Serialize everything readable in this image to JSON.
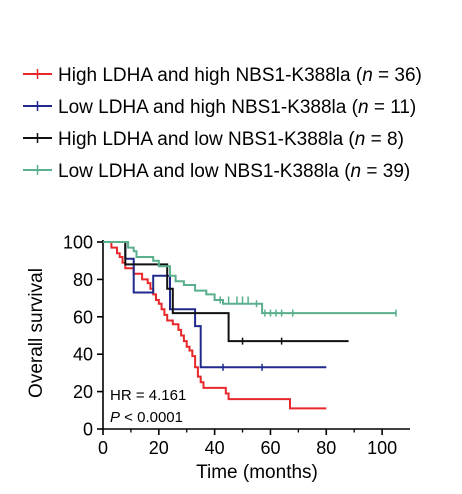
{
  "chart_data": {
    "type": "line",
    "step": true,
    "xlabel": "Time (months)",
    "ylabel": "Overall survival",
    "xlim": [
      0,
      110
    ],
    "ylim": [
      0,
      100
    ],
    "xticks": [
      "0",
      "20",
      "40",
      "60",
      "80",
      "100"
    ],
    "yticks": [
      "0",
      "20",
      "40",
      "60",
      "80",
      "100"
    ],
    "legend_position": "top",
    "annotations": {
      "hr": "HR = 4.161",
      "p_italic": "P",
      "p_rest": " < 0.0001"
    },
    "series": [
      {
        "name_main": "High LDHA and high NBS1-K388la (",
        "n_italic": "n",
        "name_tail": " = 36)",
        "color": "#e8272a",
        "points": [
          [
            0,
            100
          ],
          [
            3,
            97
          ],
          [
            5,
            94
          ],
          [
            6,
            92
          ],
          [
            7,
            89
          ],
          [
            8,
            86
          ],
          [
            11,
            83
          ],
          [
            14,
            80
          ],
          [
            16,
            78
          ],
          [
            17,
            75
          ],
          [
            18,
            72
          ],
          [
            19,
            69
          ],
          [
            20,
            67
          ],
          [
            21,
            64
          ],
          [
            22,
            61
          ],
          [
            23,
            58
          ],
          [
            25,
            56
          ],
          [
            27,
            53
          ],
          [
            28,
            50
          ],
          [
            29,
            47
          ],
          [
            30,
            44
          ],
          [
            31,
            42
          ],
          [
            32,
            39
          ],
          [
            33,
            33
          ],
          [
            34,
            28
          ],
          [
            35,
            25
          ],
          [
            36,
            22
          ],
          [
            44,
            19
          ],
          [
            45,
            16
          ],
          [
            55,
            16
          ],
          [
            67,
            11
          ],
          [
            80,
            11
          ]
        ],
        "censors": []
      },
      {
        "name_main": "Low LDHA and high NBS1-K388la (",
        "n_italic": "n",
        "name_tail": " = 11)",
        "color": "#1f2a8c",
        "points": [
          [
            0,
            100
          ],
          [
            8,
            91
          ],
          [
            11,
            73
          ],
          [
            16,
            73
          ],
          [
            18,
            82
          ],
          [
            22,
            82
          ],
          [
            24,
            64
          ],
          [
            31,
            64
          ],
          [
            33,
            55
          ],
          [
            35,
            33
          ],
          [
            80,
            33
          ]
        ],
        "censors": [
          [
            43,
            33
          ],
          [
            57,
            33
          ]
        ]
      },
      {
        "name_main": "High LDHA and low NBS1-K388la (",
        "n_italic": "n",
        "name_tail": " = 8)",
        "color": "#111111",
        "points": [
          [
            0,
            100
          ],
          [
            8,
            88
          ],
          [
            21,
            88
          ],
          [
            23,
            75
          ],
          [
            25,
            62
          ],
          [
            45,
            62
          ],
          [
            45,
            47
          ],
          [
            88,
            47
          ]
        ],
        "censors": [
          [
            50,
            47
          ],
          [
            64,
            47
          ]
        ]
      },
      {
        "name_main": "Low LDHA and low NBS1-K388la (",
        "n_italic": "n",
        "name_tail": " = 39)",
        "color": "#5aaf8c",
        "points": [
          [
            0,
            100
          ],
          [
            9,
            97
          ],
          [
            11,
            95
          ],
          [
            12,
            92
          ],
          [
            18,
            90
          ],
          [
            20,
            87
          ],
          [
            24,
            82
          ],
          [
            26,
            79
          ],
          [
            29,
            77
          ],
          [
            33,
            74
          ],
          [
            37,
            72
          ],
          [
            40,
            69
          ],
          [
            43,
            67
          ],
          [
            56,
            67
          ],
          [
            57,
            62
          ],
          [
            105,
            62
          ]
        ],
        "censors": [
          [
            42,
            69
          ],
          [
            45,
            69
          ],
          [
            48,
            69
          ],
          [
            50,
            69
          ],
          [
            52,
            69
          ],
          [
            55,
            67
          ],
          [
            58,
            62
          ],
          [
            60,
            62
          ],
          [
            62,
            62
          ],
          [
            64,
            62
          ],
          [
            68,
            62
          ],
          [
            105,
            62
          ]
        ]
      }
    ]
  }
}
